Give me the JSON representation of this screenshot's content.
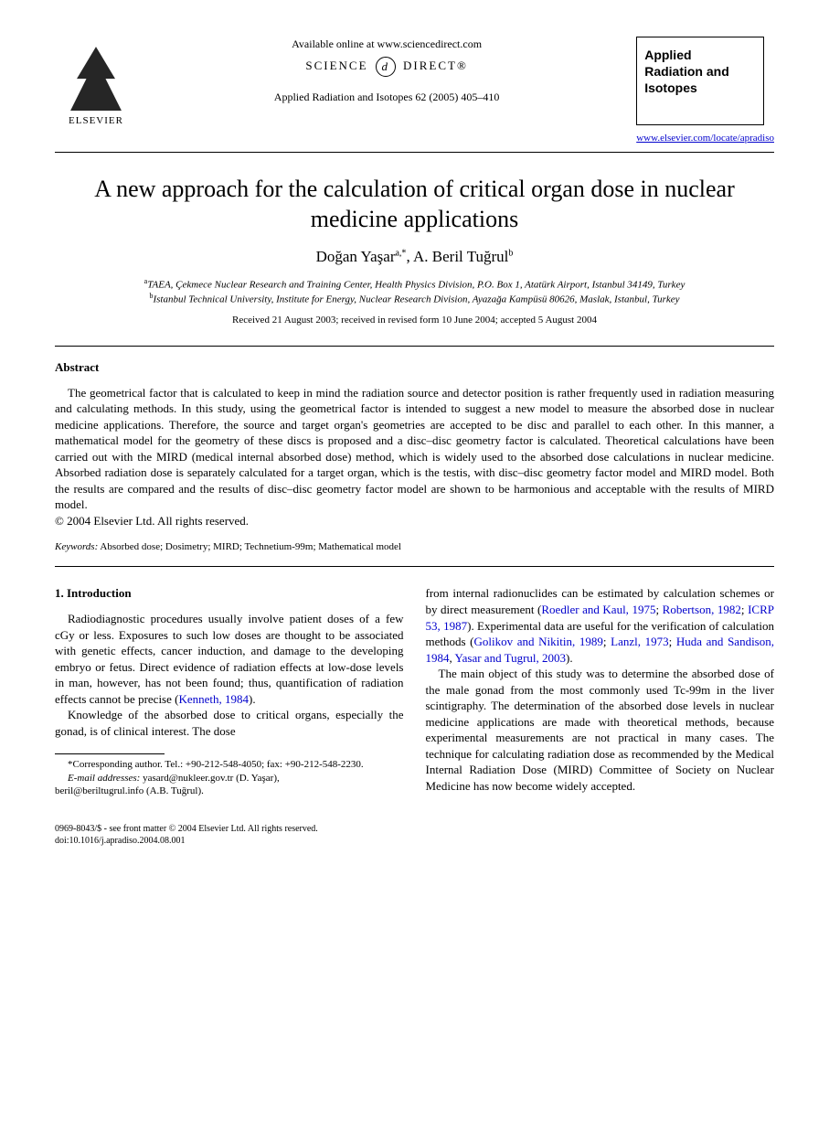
{
  "header": {
    "publisher_name": "ELSEVIER",
    "available_text": "Available online at www.sciencedirect.com",
    "science_direct": "SCIENCE",
    "science_direct2": "DIRECT®",
    "citation": "Applied Radiation and Isotopes 62 (2005) 405–410",
    "journal_box_line1": "Applied",
    "journal_box_line2": "Radiation and",
    "journal_box_line3": "Isotopes",
    "journal_url": "www.elsevier.com/locate/apradiso"
  },
  "paper": {
    "title": "A new approach for the calculation of critical organ dose in nuclear medicine applications",
    "author1": "Doğan Yaşar",
    "author1_sup": "a,*",
    "author2": "A. Beril Tuğrul",
    "author2_sup": "b",
    "affiliation_a": "TAEA, Çekmece Nuclear Research and Training Center, Health Physics Division, P.O. Box 1, Atatürk Airport, Istanbul 34149, Turkey",
    "affiliation_b": "Istanbul Technical University, Institute for Energy, Nuclear Research Division, Ayazağa Kampüsü 80626, Maslak, Istanbul, Turkey",
    "dates": "Received 21 August 2003; received in revised form 10 June 2004; accepted 5 August 2004"
  },
  "abstract": {
    "heading": "Abstract",
    "body": "The geometrical factor that is calculated to keep in mind the radiation source and detector position is rather frequently used in radiation measuring and calculating methods. In this study, using the geometrical factor is intended to suggest a new model to measure the absorbed dose in nuclear medicine applications. Therefore, the source and target organ's geometries are accepted to be disc and parallel to each other. In this manner, a mathematical model for the geometry of these discs is proposed and a disc–disc geometry factor is calculated. Theoretical calculations have been carried out with the MIRD (medical internal absorbed dose) method, which is widely used to the absorbed dose calculations in nuclear medicine. Absorbed radiation dose is separately calculated for a target organ, which is the testis, with disc–disc geometry factor model and MIRD model. Both the results are compared and the results of disc–disc geometry factor model are shown to be harmonious and acceptable with the results of MIRD model.",
    "copyright": "© 2004 Elsevier Ltd. All rights reserved."
  },
  "keywords": {
    "label": "Keywords:",
    "list": " Absorbed dose; Dosimetry; MIRD; Technetium-99m; Mathematical model"
  },
  "body": {
    "section1_heading": "1.  Introduction",
    "col1_p1": "Radiodiagnostic procedures usually involve patient doses of a few cGy or less. Exposures to such low doses are thought to be associated with genetic effects, cancer induction, and damage to the developing embryo or fetus. Direct evidence of radiation effects at low-dose levels in man, however, has not been found; thus, quantification of radiation effects cannot be precise (",
    "col1_ref1": "Kenneth, 1984",
    "col1_p1_end": ").",
    "col1_p2": "Knowledge of the absorbed dose to critical organs, especially the gonad, is of clinical interest. The dose",
    "col2_p1_a": "from internal radionuclides can be estimated by calculation schemes or by direct measurement (",
    "col2_ref1": "Roedler and Kaul, 1975",
    "col2_sep1": "; ",
    "col2_ref2": "Robertson, 1982",
    "col2_sep2": "; ",
    "col2_ref3": "ICRP 53, 1987",
    "col2_p1_b": "). Experimental data are useful for the verification of calculation methods (",
    "col2_ref4": "Golikov and Nikitin, 1989",
    "col2_sep3": "; ",
    "col2_ref5": "Lanzl, 1973",
    "col2_sep4": "; ",
    "col2_ref6": "Huda and Sandison, 1984",
    "col2_sep5": ", ",
    "col2_ref7": "Yasar and Tugrul, 2003",
    "col2_p1_c": ").",
    "col2_p2": "The main object of this study was to determine the absorbed dose of the male gonad from the most commonly used Tc-99m in the liver scintigraphy. The determination of the absorbed dose levels in nuclear medicine applications are made with theoretical methods, because experimental measurements are not practical in many cases. The technique for calculating radiation dose as recommended by the Medical Internal Radiation Dose (MIRD) Committee of Society on Nuclear Medicine has now become widely accepted."
  },
  "footnotes": {
    "corresponding": "*Corresponding author. Tel.: +90-212-548-4050; fax: +90-212-548-2230.",
    "emails_label": "E-mail addresses:",
    "email1": " yasard@nukleer.gov.tr (D. Yaşar),",
    "email2": "beril@beriltugrul.info (A.B. Tuğrul)."
  },
  "footer": {
    "line1": "0969-8043/$ - see front matter © 2004 Elsevier Ltd. All rights reserved.",
    "line2": "doi:10.1016/j.apradiso.2004.08.001"
  },
  "colors": {
    "text": "#000000",
    "link": "#0000cc",
    "background": "#ffffff"
  }
}
